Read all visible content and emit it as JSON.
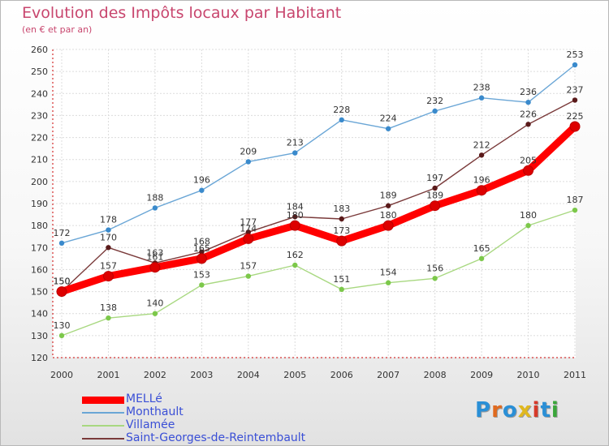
{
  "title": "Evolution des Impôts locaux par Habitant",
  "subtitle": "(en € et par an)",
  "logo": {
    "text": "Proxiti",
    "colors": [
      "#2a8fd6",
      "#e06a1f",
      "#2a8fd6",
      "#e0b81f",
      "#d63a2a",
      "#2a8fd6",
      "#3aa63a"
    ]
  },
  "chart_data": {
    "type": "line",
    "categories": [
      "2000",
      "2001",
      "2002",
      "2003",
      "2004",
      "2005",
      "2006",
      "2007",
      "2008",
      "2009",
      "2010",
      "2011"
    ],
    "ylim": [
      120,
      260
    ],
    "yticks": [
      120,
      130,
      140,
      150,
      160,
      170,
      180,
      190,
      200,
      210,
      220,
      230,
      240,
      250,
      260
    ],
    "grid": true,
    "legend_position": "bottom-left",
    "series": [
      {
        "name": "Monthault",
        "color": "#6aa6d6",
        "point_color": "#3a8acc",
        "values": [
          172,
          178,
          188,
          196,
          209,
          213,
          228,
          224,
          232,
          238,
          236,
          253
        ]
      },
      {
        "name": "Villamée",
        "color": "#a8d880",
        "point_color": "#7cc84a",
        "values": [
          130,
          138,
          140,
          153,
          157,
          162,
          151,
          154,
          156,
          165,
          180,
          187
        ]
      },
      {
        "name": "Saint-Georges-de-Reintembault",
        "color": "#7a3a3a",
        "point_color": "#5a1a1a",
        "values": [
          150,
          170,
          163,
          168,
          177,
          184,
          183,
          189,
          197,
          212,
          226,
          237
        ]
      },
      {
        "name": "MELLé",
        "color": "#ff0000",
        "point_color": "#dd0000",
        "values": [
          150,
          157,
          161,
          165,
          174,
          180,
          173,
          180,
          189,
          196,
          205,
          225
        ],
        "emphasis": true
      }
    ]
  }
}
